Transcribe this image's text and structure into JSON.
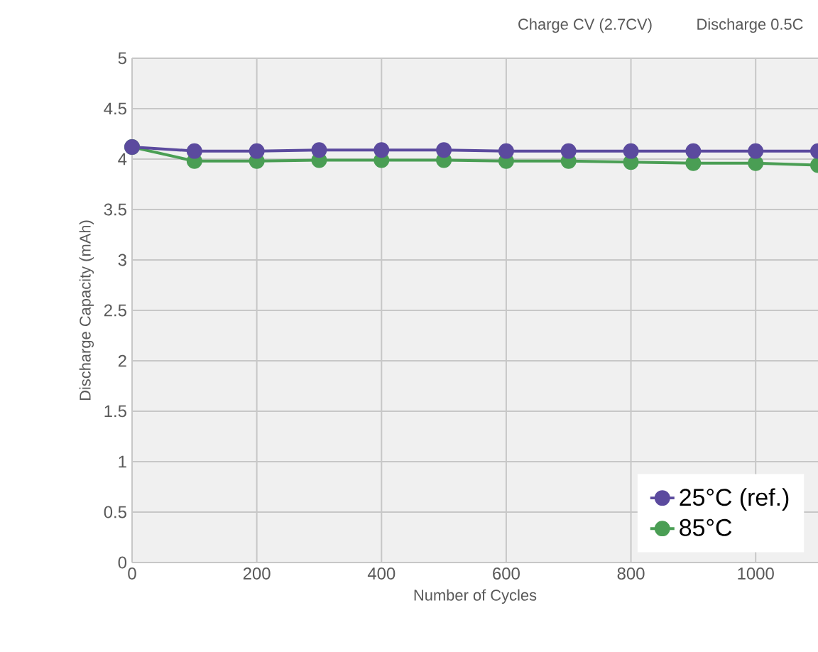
{
  "chart_data": {
    "type": "line",
    "xlabel": "Number of Cycles",
    "ylabel": "Discharge Capacity (mAh)",
    "annotations": [
      "Charge CV (2.7CV)",
      "Discharge 0.5C"
    ],
    "x": [
      0,
      100,
      200,
      300,
      400,
      500,
      600,
      700,
      800,
      900,
      1000,
      1100
    ],
    "series": [
      {
        "name": "25°C (ref.)",
        "color": "#5b4a9e",
        "values": [
          4.12,
          4.08,
          4.08,
          4.09,
          4.09,
          4.09,
          4.08,
          4.08,
          4.08,
          4.08,
          4.08,
          4.08
        ]
      },
      {
        "name": "85°C",
        "color": "#4a9e54",
        "values": [
          4.12,
          3.98,
          3.98,
          3.99,
          3.99,
          3.99,
          3.98,
          3.98,
          3.97,
          3.96,
          3.96,
          3.94
        ]
      }
    ],
    "xlim": [
      0,
      1100
    ],
    "ylim": [
      0,
      5
    ],
    "xticks": [
      0,
      200,
      400,
      600,
      800,
      1000
    ],
    "yticks": [
      0,
      0.5,
      1,
      1.5,
      2,
      2.5,
      3,
      3.5,
      4,
      4.5,
      5
    ],
    "grid": true,
    "legend": "bottom right",
    "marker": "circle",
    "line_style": "solid"
  }
}
